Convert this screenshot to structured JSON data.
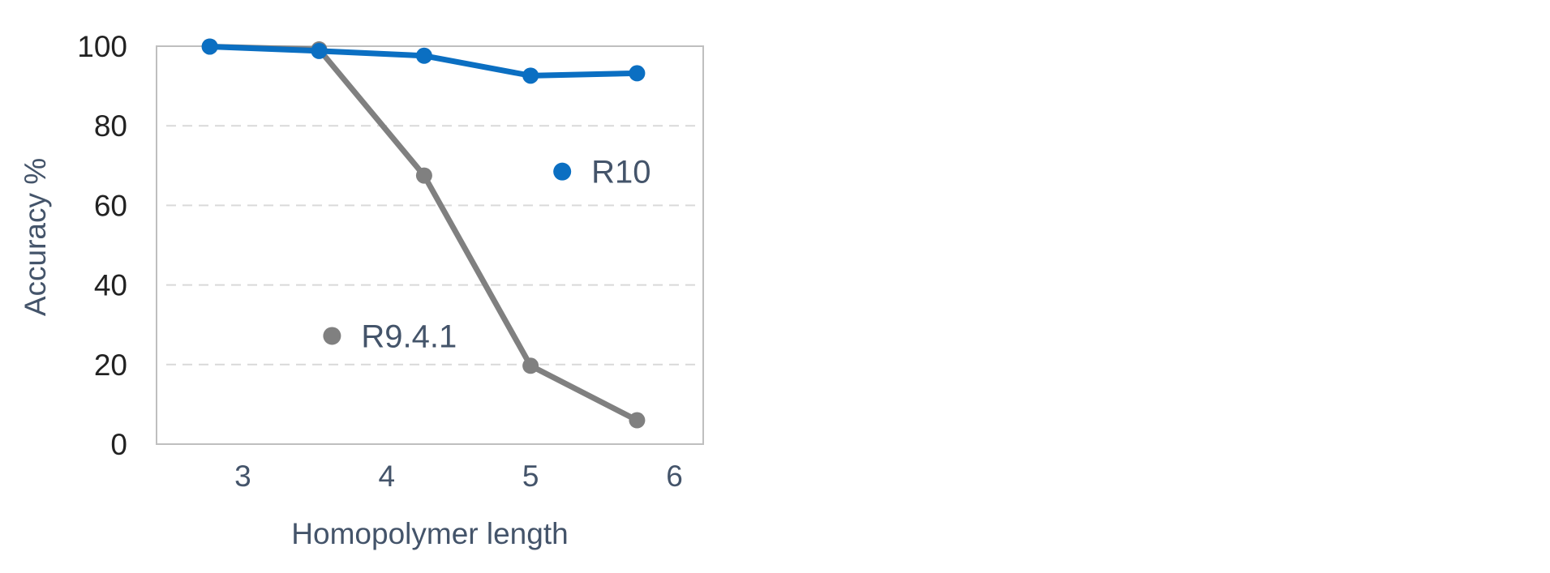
{
  "chart_data": {
    "type": "line",
    "title": "",
    "xlabel": "Homopolymer length",
    "ylabel": "Accuracy %",
    "xlim": [
      2.4,
      6.2
    ],
    "ylim": [
      0,
      100
    ],
    "x_ticks": [
      3,
      4,
      5,
      6
    ],
    "y_ticks": [
      0,
      20,
      40,
      60,
      80,
      100
    ],
    "grid": "horizontal-dashed",
    "series": [
      {
        "name": "R10",
        "color": "#0b6fc2",
        "x": [
          2.77,
          3.53,
          4.26,
          5.0,
          5.74
        ],
        "values": [
          99.9,
          98.8,
          97.6,
          92.6,
          93.2
        ]
      },
      {
        "name": "R9.4.1",
        "color": "#808080",
        "x": [
          2.77,
          3.53,
          4.26,
          5.0,
          5.74
        ],
        "values": [
          99.9,
          99.2,
          67.5,
          19.7,
          6.0
        ]
      }
    ],
    "legend": [
      {
        "label": "R10",
        "color": "#0b6fc2",
        "x": 5.22,
        "y": 68.5
      },
      {
        "label": "R9.4.1",
        "color": "#808080",
        "x": 3.62,
        "y": 27.2
      }
    ]
  }
}
